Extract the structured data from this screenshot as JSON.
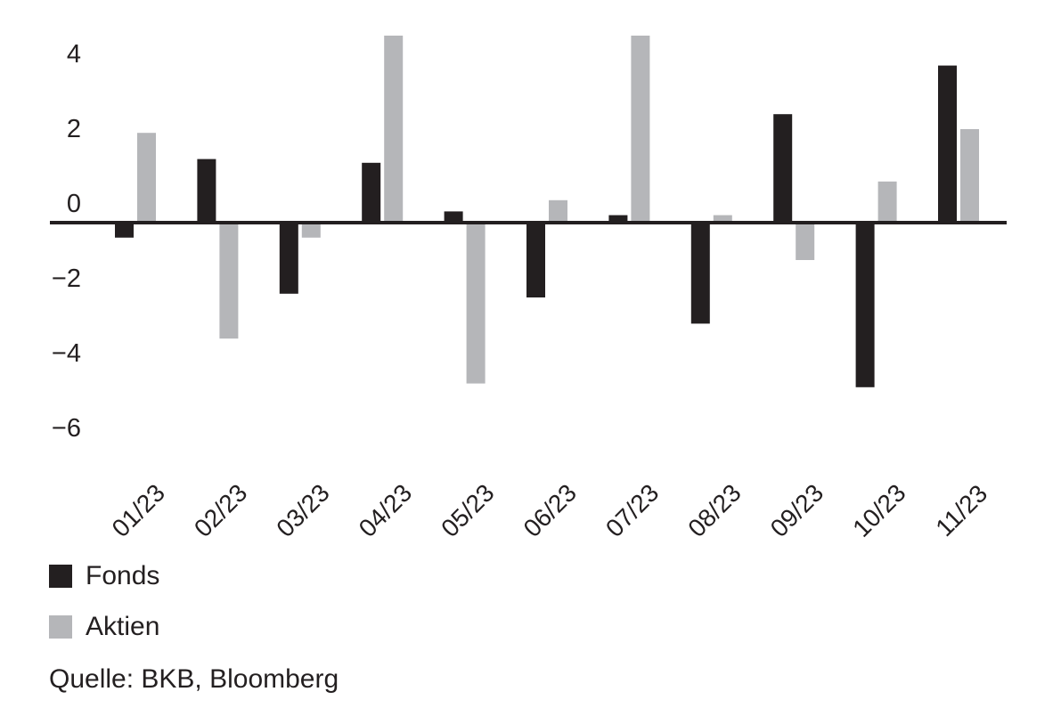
{
  "chart_data": {
    "type": "bar",
    "categories": [
      "01/23",
      "02/23",
      "03/23",
      "04/23",
      "05/23",
      "06/23",
      "07/23",
      "08/23",
      "09/23",
      "10/23",
      "11/23"
    ],
    "series": [
      {
        "name": "Fonds",
        "color": "#231f20",
        "values": [
          -0.4,
          1.7,
          -1.9,
          1.6,
          0.3,
          -2.0,
          0.2,
          -2.7,
          2.9,
          -4.4,
          4.2
        ]
      },
      {
        "name": "Aktien",
        "color": "#b5b6b9",
        "values": [
          2.4,
          -3.1,
          -0.4,
          5.0,
          -4.3,
          0.6,
          5.0,
          0.2,
          -1.0,
          1.1,
          2.5
        ]
      }
    ],
    "yticks": [
      4,
      2,
      0,
      -2,
      -4,
      -6
    ],
    "ytick_labels": [
      "4",
      "2",
      "0",
      "−2",
      "−4",
      "−6"
    ],
    "ylim": [
      -6,
      5
    ],
    "grid": false,
    "legend_position": "bottom-left",
    "source": "Quelle: BKB, Bloomberg"
  }
}
